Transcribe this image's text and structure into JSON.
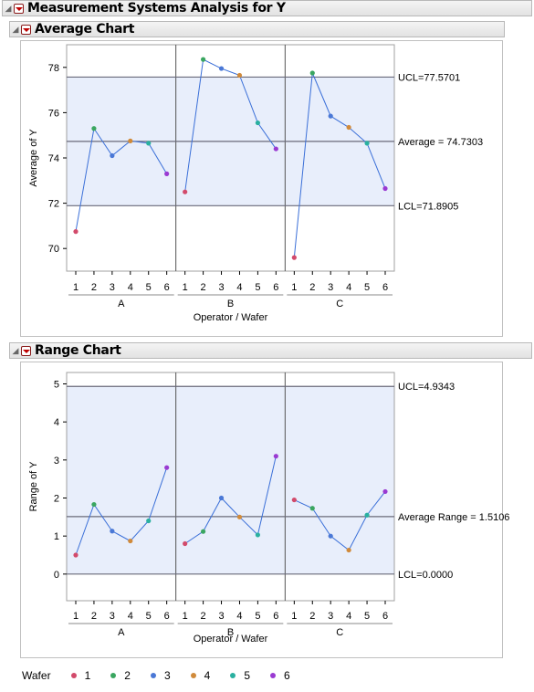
{
  "report": {
    "title": "Measurement Systems Analysis for Y",
    "average_title": "Average Chart",
    "range_title": "Range Chart"
  },
  "legend": {
    "title": "Wafer",
    "items": [
      {
        "label": "1",
        "color": "#d24a6b"
      },
      {
        "label": "2",
        "color": "#3aa660"
      },
      {
        "label": "3",
        "color": "#4a78d6"
      },
      {
        "label": "4",
        "color": "#d08a3a"
      },
      {
        "label": "5",
        "color": "#2ab0a0"
      },
      {
        "label": "6",
        "color": "#9a3ad2"
      }
    ]
  },
  "chart_data": [
    {
      "type": "line",
      "title": "Average Chart",
      "xlabel": "Operator / Wafer",
      "ylabel": "Average of Y",
      "ylim": [
        69,
        79
      ],
      "yticks": [
        70,
        72,
        74,
        76,
        78
      ],
      "operators": [
        "A",
        "B",
        "C"
      ],
      "wafers": [
        "1",
        "2",
        "3",
        "4",
        "5",
        "6"
      ],
      "series": [
        {
          "operator": "A",
          "values": [
            70.75,
            75.3,
            74.1,
            74.75,
            74.65,
            73.3
          ]
        },
        {
          "operator": "B",
          "values": [
            72.5,
            78.35,
            77.95,
            77.65,
            75.55,
            74.4
          ]
        },
        {
          "operator": "C",
          "values": [
            69.6,
            77.75,
            75.85,
            75.35,
            74.65,
            72.65
          ]
        }
      ],
      "limits": [
        {
          "value": 77.5701,
          "label": "UCL=77.5701"
        },
        {
          "value": 74.7303,
          "label": "Average = 74.7303"
        },
        {
          "value": 71.8905,
          "label": "LCL=71.8905"
        }
      ],
      "band": [
        71.8905,
        77.5701
      ]
    },
    {
      "type": "line",
      "title": "Range Chart",
      "xlabel": "Operator / Wafer",
      "ylabel": "Range of Y",
      "ylim": [
        -0.7,
        5.3
      ],
      "yticks": [
        0,
        1,
        2,
        3,
        4,
        5
      ],
      "operators": [
        "A",
        "B",
        "C"
      ],
      "wafers": [
        "1",
        "2",
        "3",
        "4",
        "5",
        "6"
      ],
      "series": [
        {
          "operator": "A",
          "values": [
            0.5,
            1.83,
            1.13,
            0.87,
            1.4,
            2.8
          ]
        },
        {
          "operator": "B",
          "values": [
            0.8,
            1.12,
            2.0,
            1.5,
            1.03,
            3.1
          ]
        },
        {
          "operator": "C",
          "values": [
            1.95,
            1.73,
            1.0,
            0.63,
            1.55,
            2.17
          ]
        }
      ],
      "limits": [
        {
          "value": 4.9343,
          "label": "UCL=4.9343"
        },
        {
          "value": 1.5106,
          "label": "Average Range = 1.5106"
        },
        {
          "value": 0.0,
          "label": "LCL=0.0000"
        }
      ],
      "band": [
        0.0,
        4.9343
      ]
    }
  ]
}
